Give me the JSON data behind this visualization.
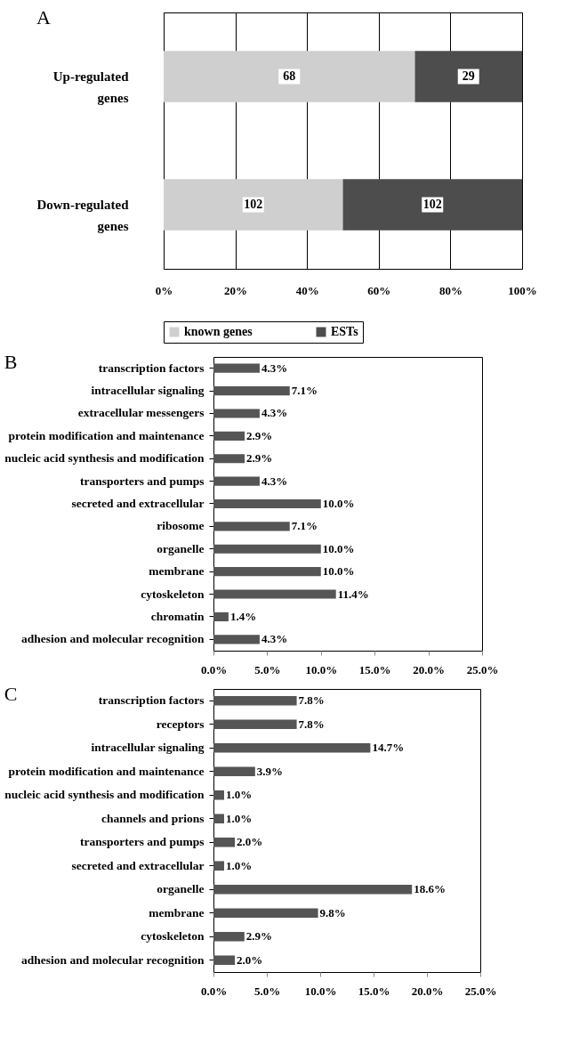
{
  "chart_data": [
    {
      "type": "bar",
      "orientation": "horizontal",
      "stacked": true,
      "title": "A",
      "categories": [
        "Up-regulated genes",
        "Down-regulated genes"
      ],
      "series": [
        {
          "name": "known genes",
          "color": "#cfcfcf",
          "values": [
            70.1,
            50
          ]
        },
        {
          "name": "ESTs",
          "color": "#4d4d4d",
          "values": [
            29.9,
            50
          ]
        }
      ],
      "annotations": [
        "68",
        "29",
        "102",
        "102"
      ],
      "xlim": [
        0,
        100
      ],
      "xticks": [
        {
          "value": 0,
          "label": "0%"
        },
        {
          "value": 20,
          "label": "20%"
        },
        {
          "value": 40,
          "label": "40%"
        },
        {
          "value": 60,
          "label": "60%"
        },
        {
          "value": 80,
          "label": "80%"
        },
        {
          "value": 100,
          "label": "100%"
        }
      ],
      "grid": "x",
      "legend": "bottom"
    },
    {
      "type": "bar",
      "orientation": "horizontal",
      "title": "B",
      "categories": [
        "transcription factors",
        "intracellular signaling",
        "extracellular messengers",
        "protein modification and maintenance",
        "nucleic acid synthesis and modification",
        "transporters and pumps",
        "secreted and extracellular",
        "ribosome",
        "organelle",
        "membrane",
        "cytoskeleton",
        "chromatin",
        "adhesion and molecular recognition"
      ],
      "series": [
        {
          "color": "#555555",
          "values": [
            4.3,
            7.1,
            4.3,
            2.9,
            2.9,
            4.3,
            10.0,
            7.1,
            10.0,
            10.0,
            11.4,
            1.4,
            4.3
          ],
          "value_labels": [
            "4.3%",
            "7.1%",
            "4.3%",
            "2.9%",
            "2.9%",
            "4.3%",
            "10.0%",
            "7.1%",
            "10.0%",
            "10.0%",
            "11.4%",
            "1.4%",
            "4.3%"
          ]
        }
      ],
      "xlim": [
        0,
        25
      ],
      "xticks": [
        {
          "value": 0,
          "label": "0.0%"
        },
        {
          "value": 5,
          "label": "5.0%"
        },
        {
          "value": 10,
          "label": "10.0%"
        },
        {
          "value": 15,
          "label": "15.0%"
        },
        {
          "value": 20,
          "label": "20.0%"
        },
        {
          "value": 25,
          "label": "25.0%"
        }
      ]
    },
    {
      "type": "bar",
      "orientation": "horizontal",
      "title": "C",
      "categories": [
        "transcription factors",
        "receptors",
        "intracellular signaling",
        "protein modification and maintenance",
        "nucleic acid synthesis and modification",
        "channels and prions",
        "transporters and pumps",
        "secreted and extracellular",
        "organelle",
        "membrane",
        "cytoskeleton",
        "adhesion and molecular recognition"
      ],
      "series": [
        {
          "color": "#555555",
          "values": [
            7.8,
            7.8,
            14.7,
            3.9,
            1.0,
            1.0,
            2.0,
            1.0,
            18.6,
            9.8,
            2.9,
            2.0
          ],
          "value_labels": [
            "7.8%",
            "7.8%",
            "14.7%",
            "3.9%",
            "1.0%",
            "1.0%",
            "2.0%",
            "1.0%",
            "18.6%",
            "9.8%",
            "2.9%",
            "2.0%"
          ]
        }
      ],
      "xlim": [
        0,
        25
      ],
      "xticks": [
        {
          "value": 0,
          "label": "0.0%"
        },
        {
          "value": 5,
          "label": "5.0%"
        },
        {
          "value": 10,
          "label": "10.0%"
        },
        {
          "value": 15,
          "label": "15.0%"
        },
        {
          "value": 20,
          "label": "20.0%"
        },
        {
          "value": 25,
          "label": "25.0%"
        }
      ]
    }
  ]
}
